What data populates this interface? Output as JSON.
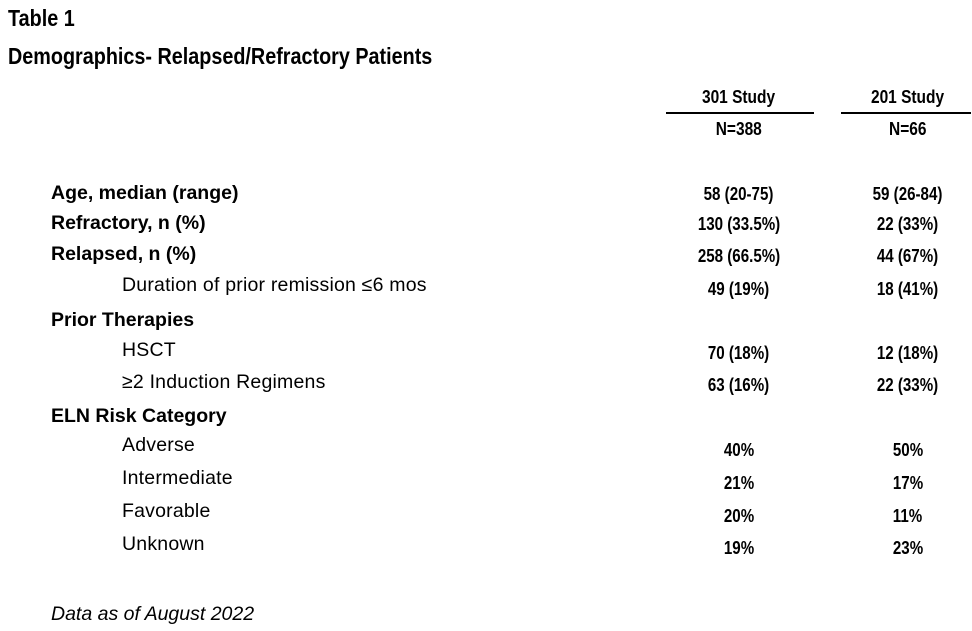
{
  "title_line1": "Table 1",
  "title_line2": "Demographics- Relapsed/Refractory Patients",
  "columns": [
    {
      "study": "301 Study",
      "n": "N=388"
    },
    {
      "study": "201 Study",
      "n": "N=66"
    }
  ],
  "rows": [
    {
      "label": "Age, median (range)",
      "v1": "58 (20-75)",
      "v2": "59 (26-84)"
    },
    {
      "label": "Refractory, n (%)",
      "v1": "130 (33.5%)",
      "v2": "22 (33%)"
    },
    {
      "label": "Relapsed, n (%)",
      "v1": "258 (66.5%)",
      "v2": "44 (67%)"
    },
    {
      "label": "Duration of prior remission ≤6 mos",
      "v1": "49 (19%)",
      "v2": "18 (41%)"
    },
    {
      "label": "Prior Therapies"
    },
    {
      "label": "HSCT",
      "v1": "70 (18%)",
      "v2": "12 (18%)"
    },
    {
      "label": "≥2 Induction Regimens",
      "v1": "63 (16%)",
      "v2": "22 (33%)"
    },
    {
      "label": "ELN Risk Category"
    },
    {
      "label": "Adverse",
      "v1": "40%",
      "v2": "50%"
    },
    {
      "label": "Intermediate",
      "v1": "21%",
      "v2": "17%"
    },
    {
      "label": "Favorable",
      "v1": "20%",
      "v2": "11%"
    },
    {
      "label": "Unknown",
      "v1": "19%",
      "v2": "23%"
    }
  ],
  "footnote": "Data as of August 2022"
}
